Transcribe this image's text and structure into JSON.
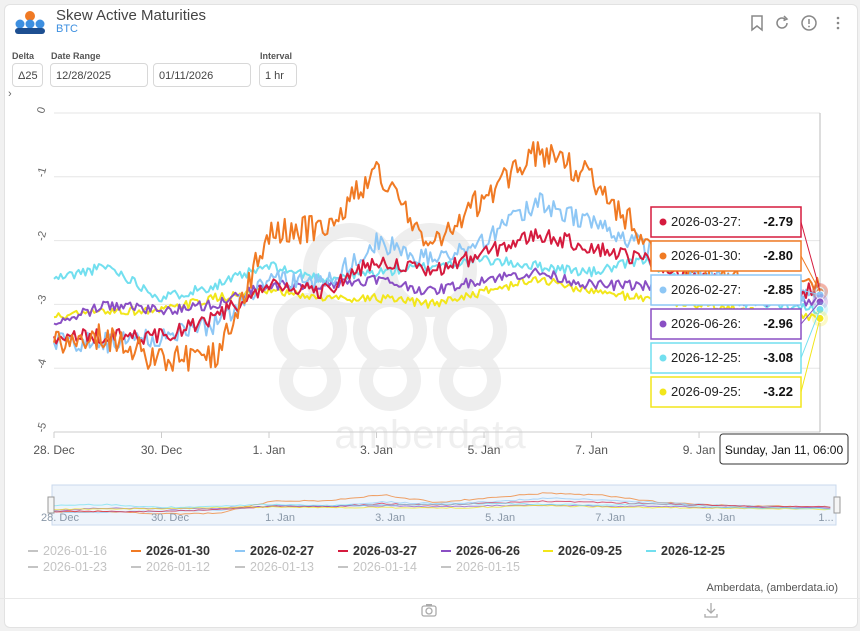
{
  "header": {
    "title": "Skew Active Maturities",
    "subtitle": "BTC"
  },
  "controls": {
    "delta_label": "Delta",
    "delta_value": "Δ25",
    "date_range_label": "Date Range",
    "date_start": "12/28/2025",
    "date_end": "01/11/2026",
    "interval_label": "Interval",
    "interval_value": "1 hr"
  },
  "icons": [
    "bookmark-icon",
    "refresh-icon",
    "info-icon",
    "more-icon",
    "camera-icon",
    "download-icon",
    "expand-chevron-icon"
  ],
  "colors": {
    "2026-01-30": "#f07a24",
    "2026-02-27": "#8ec7f5",
    "2026-03-27": "#d51b3e",
    "2026-06-26": "#8a4fc4",
    "2026-09-25": "#f2e61b",
    "2026-12-25": "#72dfef",
    "inactive": "#c4c4c4"
  },
  "chart_data": {
    "type": "line",
    "xlabel": "",
    "ylabel": "",
    "x_tick_labels": [
      "28. Dec",
      "30. Dec",
      "1. Jan",
      "3. Jan",
      "5. Jan",
      "7. Jan",
      "9. Jan"
    ],
    "navigator_tick_labels": [
      "28. Dec",
      "30. Dec",
      "1. Jan",
      "3. Jan",
      "5. Jan",
      "7. Jan",
      "9. Jan",
      "1..."
    ],
    "y_tick_labels": [
      "0",
      "-1",
      "-2",
      "-3",
      "-4",
      "-5"
    ],
    "ylim": [
      -5,
      0
    ],
    "xlim": [
      "2025-12-28",
      "2026-01-11 06:00"
    ],
    "grid": true,
    "legend_position": "bottom",
    "legend": [
      {
        "name": "2026-01-16",
        "active": false
      },
      {
        "name": "2026-01-30",
        "active": true
      },
      {
        "name": "2026-02-27",
        "active": true
      },
      {
        "name": "2026-03-27",
        "active": true
      },
      {
        "name": "2026-06-26",
        "active": true
      },
      {
        "name": "2026-09-25",
        "active": true
      },
      {
        "name": "2026-12-25",
        "active": true
      },
      {
        "name": "2026-01-23",
        "active": false
      },
      {
        "name": "2026-01-12",
        "active": false
      },
      {
        "name": "2026-01-13",
        "active": false
      },
      {
        "name": "2026-01-14",
        "active": false
      },
      {
        "name": "2026-01-15",
        "active": false
      }
    ],
    "series": [
      {
        "name": "2026-01-30",
        "x": [
          "2025-12-28",
          "2025-12-29",
          "2025-12-30",
          "2025-12-31",
          "2026-01-01",
          "2026-01-02",
          "2026-01-03",
          "2026-01-04",
          "2026-01-05",
          "2026-01-06",
          "2026-01-07",
          "2026-01-08",
          "2026-01-09",
          "2026-01-10",
          "2026-01-11"
        ],
        "values": [
          -3.6,
          -3.5,
          -3.9,
          -3.8,
          -1.9,
          -1.8,
          -0.9,
          -2.1,
          -1.3,
          -0.6,
          -1.0,
          -2.0,
          -2.5,
          -2.7,
          -2.8
        ]
      },
      {
        "name": "2026-02-27",
        "x": [
          "2025-12-28",
          "2025-12-29",
          "2025-12-30",
          "2025-12-31",
          "2026-01-01",
          "2026-01-02",
          "2026-01-03",
          "2026-01-04",
          "2026-01-05",
          "2026-01-06",
          "2026-01-07",
          "2026-01-08",
          "2026-01-09",
          "2026-01-10",
          "2026-01-11"
        ],
        "values": [
          -3.6,
          -3.6,
          -3.5,
          -3.3,
          -2.6,
          -2.7,
          -2.0,
          -2.3,
          -2.0,
          -1.4,
          -1.7,
          -2.1,
          -2.5,
          -2.75,
          -2.85
        ]
      },
      {
        "name": "2026-03-27",
        "x": [
          "2025-12-28",
          "2025-12-29",
          "2025-12-30",
          "2025-12-31",
          "2026-01-01",
          "2026-01-02",
          "2026-01-03",
          "2026-01-04",
          "2026-01-05",
          "2026-01-06",
          "2026-01-07",
          "2026-01-08",
          "2026-01-09",
          "2026-01-10",
          "2026-01-11"
        ],
        "values": [
          -3.5,
          -3.5,
          -3.5,
          -3.2,
          -2.7,
          -2.8,
          -2.3,
          -2.5,
          -2.2,
          -1.9,
          -2.1,
          -2.3,
          -2.6,
          -2.75,
          -2.79
        ]
      },
      {
        "name": "2026-06-26",
        "x": [
          "2025-12-28",
          "2025-12-29",
          "2025-12-30",
          "2025-12-31",
          "2026-01-01",
          "2026-01-02",
          "2026-01-03",
          "2026-01-04",
          "2026-01-05",
          "2026-01-06",
          "2026-01-07",
          "2026-01-08",
          "2026-01-09",
          "2026-01-10",
          "2026-01-11"
        ],
        "values": [
          -3.3,
          -3.0,
          -3.1,
          -3.0,
          -2.7,
          -2.7,
          -2.6,
          -2.8,
          -2.6,
          -2.5,
          -2.7,
          -2.7,
          -2.9,
          -2.95,
          -2.96
        ]
      },
      {
        "name": "2026-09-25",
        "x": [
          "2025-12-28",
          "2025-12-29",
          "2025-12-30",
          "2025-12-31",
          "2026-01-01",
          "2026-01-02",
          "2026-01-03",
          "2026-01-04",
          "2026-01-05",
          "2026-01-06",
          "2026-01-07",
          "2026-01-08",
          "2026-01-09",
          "2026-01-10",
          "2026-01-11"
        ],
        "values": [
          -3.2,
          -3.1,
          -3.1,
          -2.9,
          -2.8,
          -2.9,
          -2.9,
          -3.0,
          -2.8,
          -2.6,
          -2.8,
          -2.9,
          -3.0,
          -3.1,
          -3.22
        ]
      },
      {
        "name": "2026-12-25",
        "x": [
          "2025-12-28",
          "2025-12-29",
          "2025-12-30",
          "2025-12-31",
          "2026-01-01",
          "2026-01-02",
          "2026-01-03",
          "2026-01-04",
          "2026-01-05",
          "2026-01-06",
          "2026-01-07",
          "2026-01-08",
          "2026-01-09",
          "2026-01-10",
          "2026-01-11"
        ],
        "values": [
          -2.6,
          -2.4,
          -2.9,
          -2.7,
          -2.4,
          -2.6,
          -2.5,
          -2.4,
          -2.3,
          -2.4,
          -2.5,
          -2.3,
          -2.8,
          -3.0,
          -3.08
        ]
      }
    ],
    "tooltip": {
      "header": "Sunday, Jan 11, 06:00",
      "entries": [
        {
          "name": "2026-03-27",
          "value": "-2.79"
        },
        {
          "name": "2026-01-30",
          "value": "-2.80"
        },
        {
          "name": "2026-02-27",
          "value": "-2.85"
        },
        {
          "name": "2026-06-26",
          "value": "-2.96"
        },
        {
          "name": "2026-12-25",
          "value": "-3.08"
        },
        {
          "name": "2026-09-25",
          "value": "-3.22"
        }
      ]
    },
    "watermark": "amberdata",
    "credits": "Amberdata, (amberdata.io)"
  }
}
